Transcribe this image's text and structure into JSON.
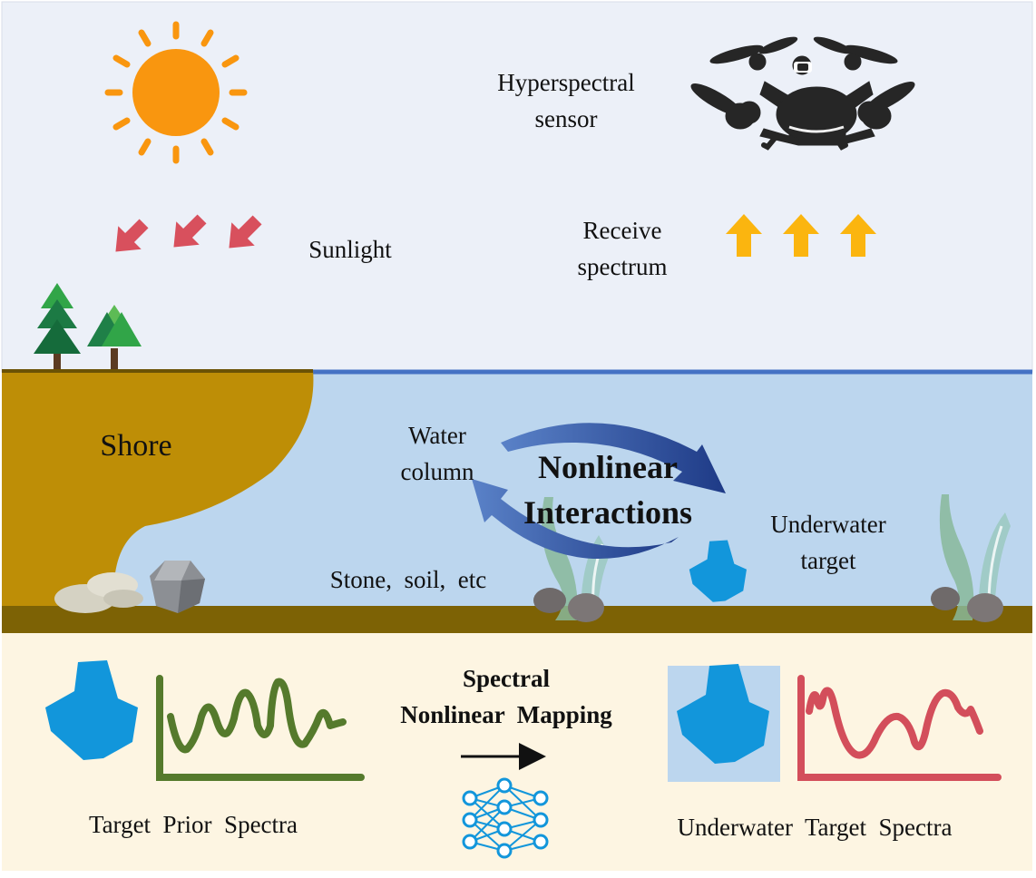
{
  "sky": {
    "sensor_label_line1": "Hyperspectral",
    "sensor_label_line2": "sensor",
    "sunlight_label": "Sunlight",
    "receive_label_line1": "Receive",
    "receive_label_line2": "spectrum"
  },
  "water": {
    "shore_label": "Shore",
    "water_column_line1": "Water",
    "water_column_line2": "column",
    "interactions_line1": "Nonlinear",
    "interactions_line2": "Interactions",
    "stone_label": "Stone,  soil,  etc",
    "target_line1": "Underwater",
    "target_line2": "target"
  },
  "mapping": {
    "title_line1": "Spectral",
    "title_line2": "Nonlinear  Mapping",
    "prior_caption": "Target  Prior  Spectra",
    "underwater_caption": "Underwater  Target  Spectra"
  },
  "colors": {
    "sky": "#ecf0f8",
    "water": "#bcd6ee",
    "shore": "#be8e06",
    "seabed": "#7d6205",
    "bottom_panel": "#fdf5e2",
    "sun": "#f9960f",
    "sunlight_arrow": "#d8505d",
    "receive_arrow": "#fbb50f",
    "target": "#1296db",
    "prior_curve": "#557a2c",
    "underwater_curve": "#d34e5b",
    "interaction_arrow": "#2e4d95"
  },
  "icons": {
    "sun": "sun-icon",
    "drone": "drone-icon",
    "tree": "tree-icon",
    "crystal": "crystal-icon",
    "network": "neural-network-icon"
  }
}
